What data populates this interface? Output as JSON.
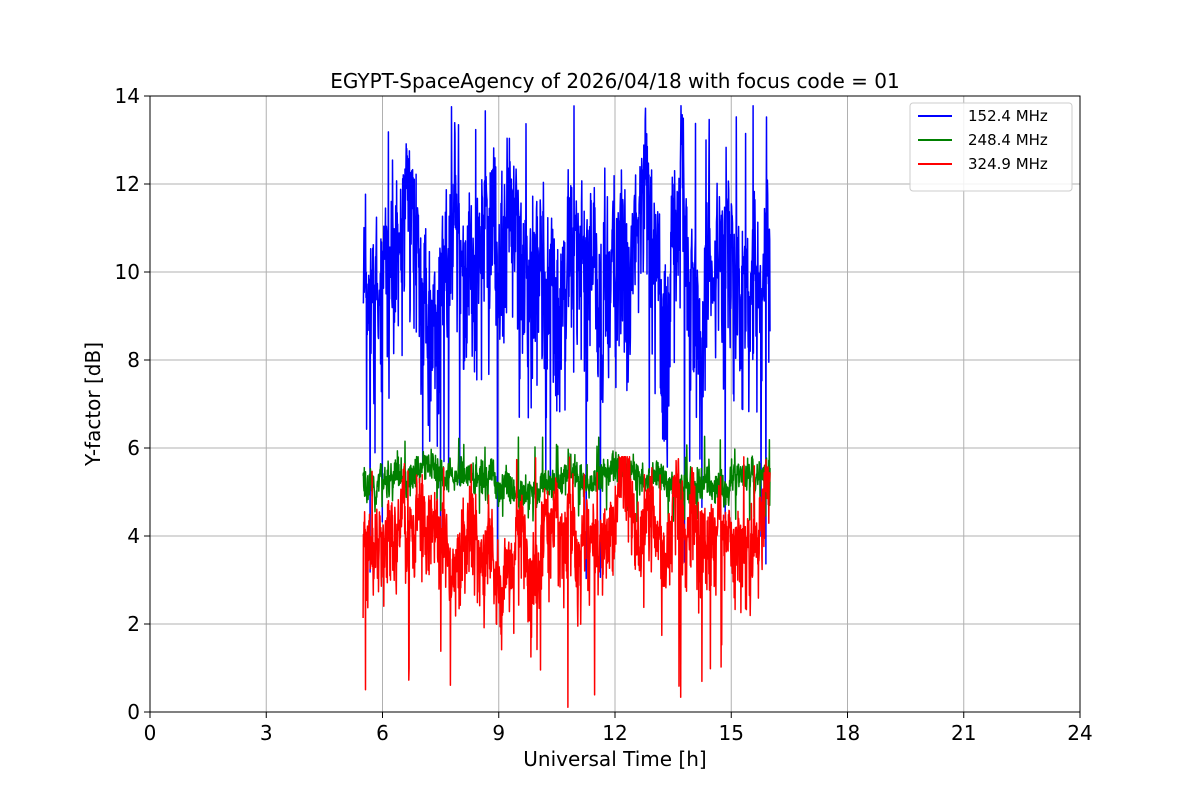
{
  "chart_data": {
    "type": "line",
    "title": "EGYPT-SpaceAgency of 2026/04/18 with focus code = 01",
    "xlabel": "Universal Time [h]",
    "ylabel": "Y-factor [dB]",
    "xlim": [
      0,
      24
    ],
    "ylim": [
      0,
      14
    ],
    "xticks": [
      0,
      3,
      6,
      9,
      12,
      15,
      18,
      21,
      24
    ],
    "yticks": [
      0,
      2,
      4,
      6,
      8,
      10,
      12,
      14
    ],
    "grid": true,
    "legend_position": "top-right",
    "series": [
      {
        "name": "152.4 MHz",
        "color": "#0000ff",
        "approx_x_range": [
          5.5,
          16.0
        ],
        "approx_y_range": [
          3.0,
          14.0
        ],
        "typical_y": 10.5
      },
      {
        "name": "248.4 MHz",
        "color": "#008000",
        "approx_x_range": [
          5.5,
          16.0
        ],
        "approx_y_range": [
          4.3,
          6.3
        ],
        "typical_y": 5.3
      },
      {
        "name": "324.9 MHz",
        "color": "#ff0000",
        "approx_x_range": [
          5.5,
          16.0
        ],
        "approx_y_range": [
          0.0,
          5.8
        ],
        "typical_y": 4.2
      }
    ]
  }
}
